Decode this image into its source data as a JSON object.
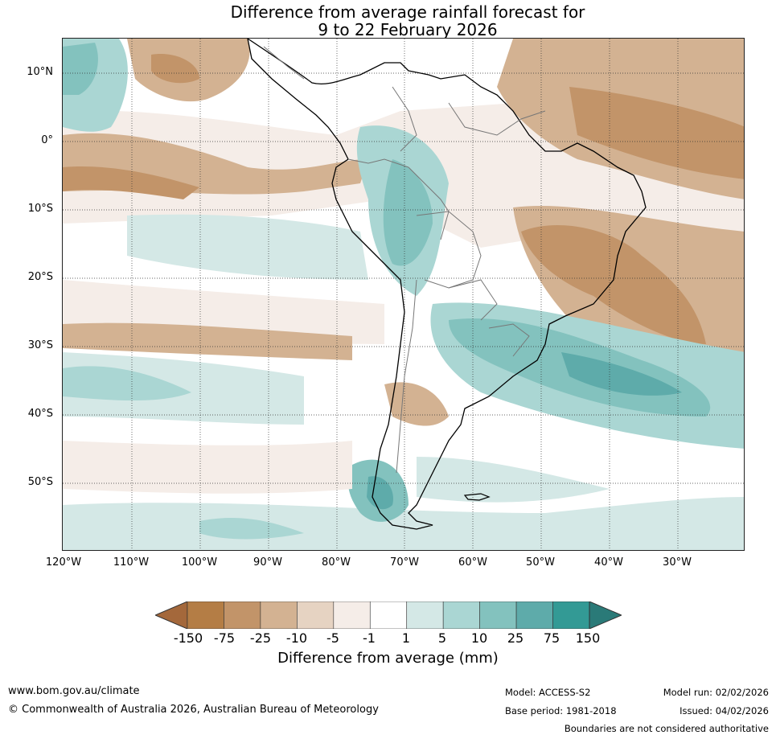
{
  "title": {
    "line1": "Difference from average rainfall forecast for",
    "line2": "9 to 22 February 2026"
  },
  "axes": {
    "lat_labels": [
      "10°N",
      "0°",
      "10°S",
      "20°S",
      "30°S",
      "40°S",
      "50°S"
    ],
    "lon_labels": [
      "120°W",
      "110°W",
      "100°W",
      "90°W",
      "80°W",
      "70°W",
      "60°W",
      "50°W",
      "40°W",
      "30°W"
    ]
  },
  "legend": {
    "title": "Difference from average (mm)",
    "ticks": [
      "-150",
      "-75",
      "-25",
      "-10",
      "-5",
      "-1",
      "1",
      "5",
      "10",
      "25",
      "75",
      "150"
    ],
    "colors": [
      "#a4683b",
      "#b47d45",
      "#c29469",
      "#d3b292",
      "#e6d3c2",
      "#f5ede8",
      "#ffffff",
      "#d4e8e6",
      "#aad6d3",
      "#83c2be",
      "#5eabaa",
      "#339a95",
      "#2a7a78"
    ]
  },
  "footer": {
    "website": "www.bom.gov.au/climate",
    "copyright": "© Commonwealth of Australia 2026, Australian Bureau of Meteorology",
    "model": "Model: ACCESS-S2",
    "base_period": "Base period: 1981-2018",
    "model_run": "Model run: 02/02/2026",
    "issued": "Issued: 04/02/2026",
    "disclaimer": "Boundaries are not considered authoritative"
  }
}
